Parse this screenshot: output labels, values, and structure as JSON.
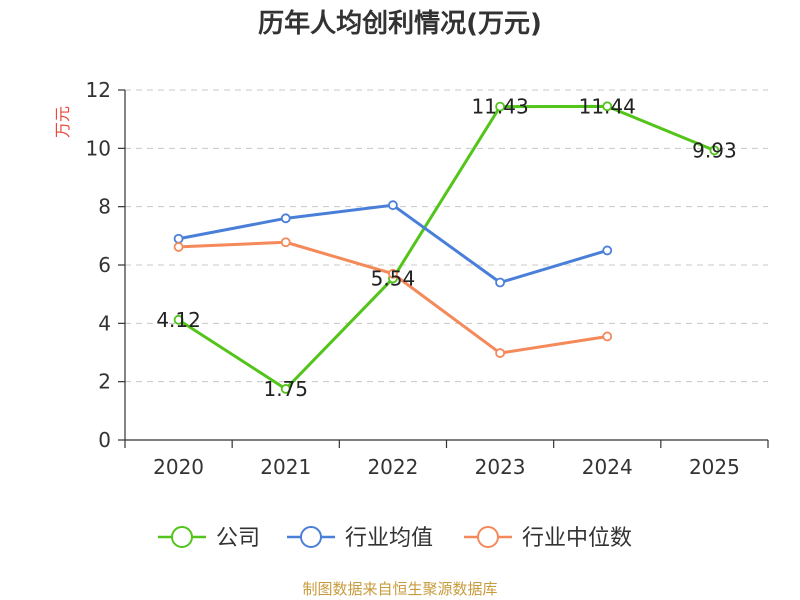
{
  "chart_data": {
    "type": "line",
    "title": "历年人均创利情况(万元)",
    "ylabel": "万元",
    "categories": [
      "2020",
      "2021",
      "2022",
      "2023",
      "2024",
      "2025"
    ],
    "ylim": [
      0,
      12
    ],
    "yticks": [
      0,
      2,
      4,
      6,
      8,
      10,
      12
    ],
    "grid": true,
    "legend_position": "bottom",
    "series": [
      {
        "name": "公司",
        "color": "#52c41a",
        "values": [
          4.12,
          1.75,
          5.54,
          11.43,
          11.44,
          9.93
        ],
        "labels": [
          "4.12",
          "1.75",
          "5.54",
          "11.43",
          "11.44",
          "9.93"
        ]
      },
      {
        "name": "行业均值",
        "color": "#4a7fd9",
        "values": [
          6.9,
          7.6,
          8.05,
          5.4,
          6.5,
          null
        ]
      },
      {
        "name": "行业中位数",
        "color": "#f4895a",
        "values": [
          6.62,
          6.78,
          5.7,
          2.98,
          3.55,
          null
        ]
      }
    ]
  },
  "source": "制图数据来自恒生聚源数据库"
}
